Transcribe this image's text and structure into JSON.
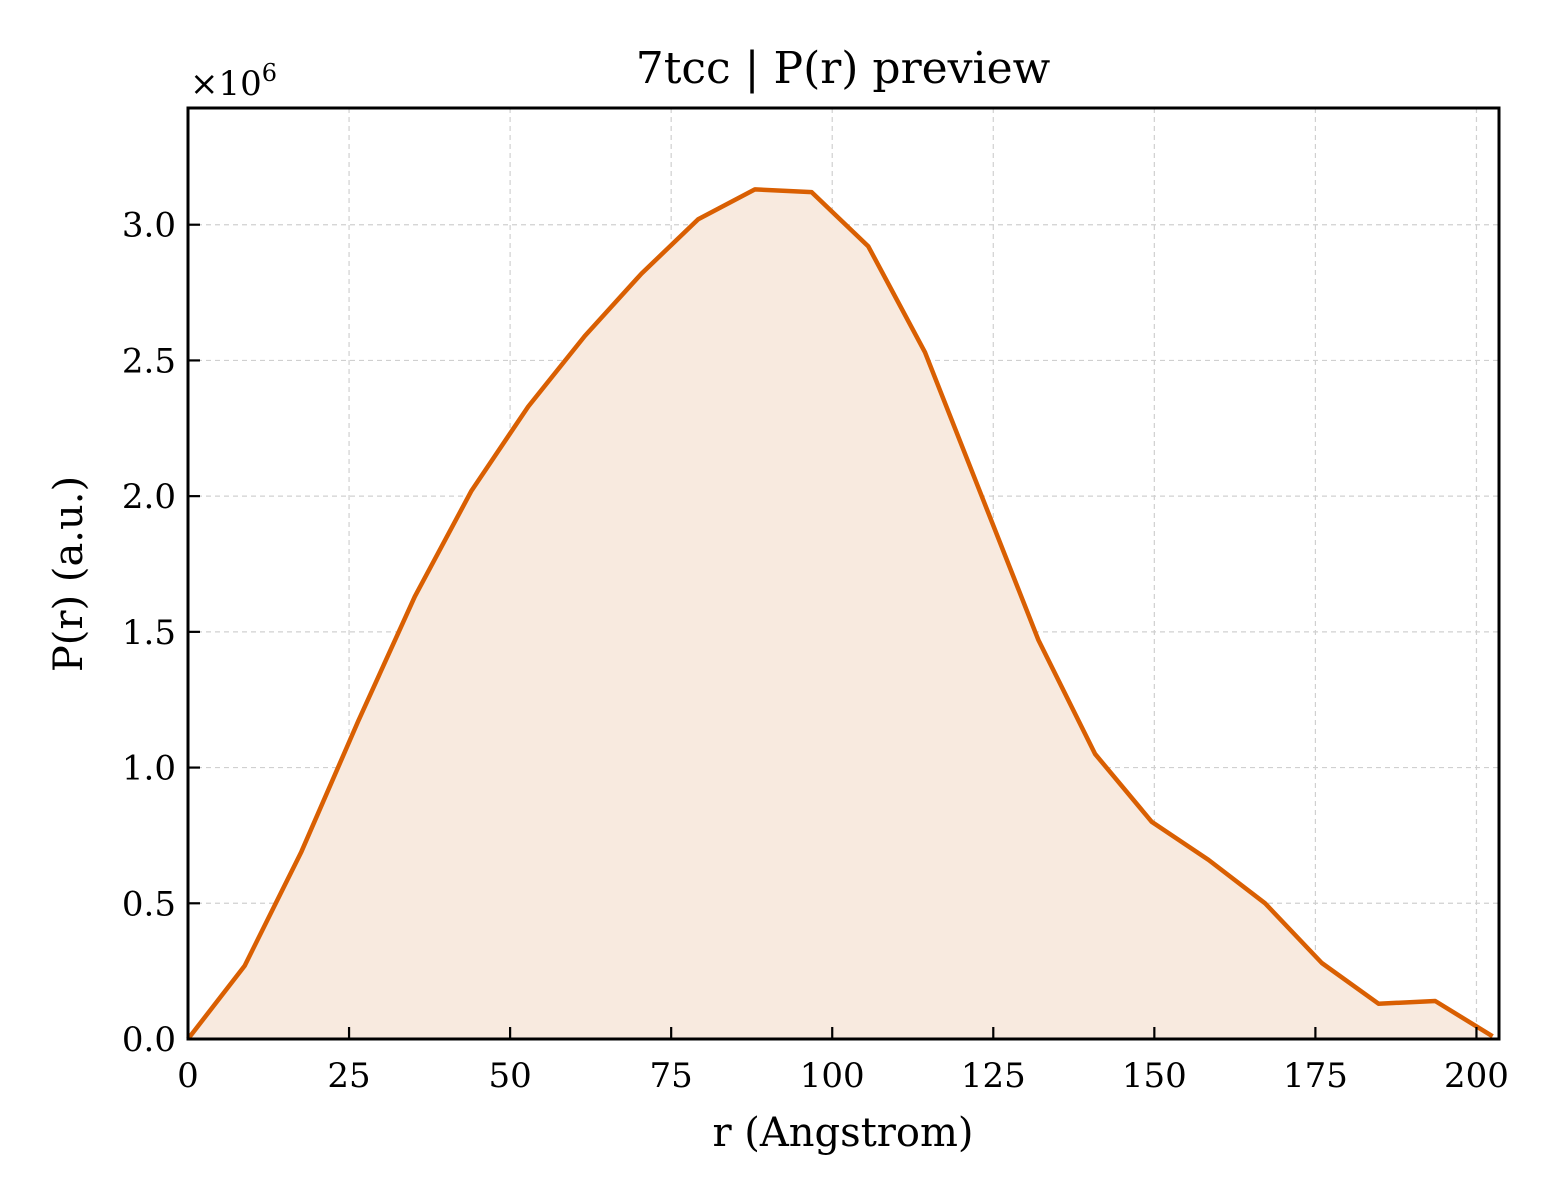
{
  "chart_data": {
    "type": "area",
    "title": "7tcc | P(r) preview",
    "xlabel": "r (Angstrom)",
    "ylabel": "P(r) (a.u.)",
    "y_scale_label": "×10",
    "y_scale_exponent": "6",
    "xlim": [
      0,
      203.5
    ],
    "ylim": [
      0,
      3.43
    ],
    "xticks": [
      "0",
      "25",
      "50",
      "75",
      "100",
      "125",
      "150",
      "175",
      "200"
    ],
    "yticks": [
      "0.0",
      "0.5",
      "1.0",
      "1.5",
      "2.0",
      "2.5",
      "3.0"
    ],
    "grid": true,
    "line_color": "#d95f02",
    "fill_color": "#f8eadf",
    "series": [
      {
        "x": [
          0,
          8.8,
          17.6,
          26.4,
          35.2,
          44.0,
          52.8,
          61.6,
          70.4,
          79.2,
          88.0,
          96.8,
          105.6,
          114.4,
          123.2,
          132.0,
          140.8,
          149.6,
          158.4,
          167.2,
          176.0,
          184.8,
          193.6,
          202.5
        ],
        "y": [
          0.0,
          0.27,
          0.69,
          1.17,
          1.63,
          2.02,
          2.33,
          2.59,
          2.82,
          3.02,
          3.13,
          3.12,
          2.92,
          2.53,
          2.0,
          1.47,
          1.05,
          0.8,
          0.66,
          0.5,
          0.28,
          0.13,
          0.14,
          0.01
        ]
      }
    ]
  }
}
